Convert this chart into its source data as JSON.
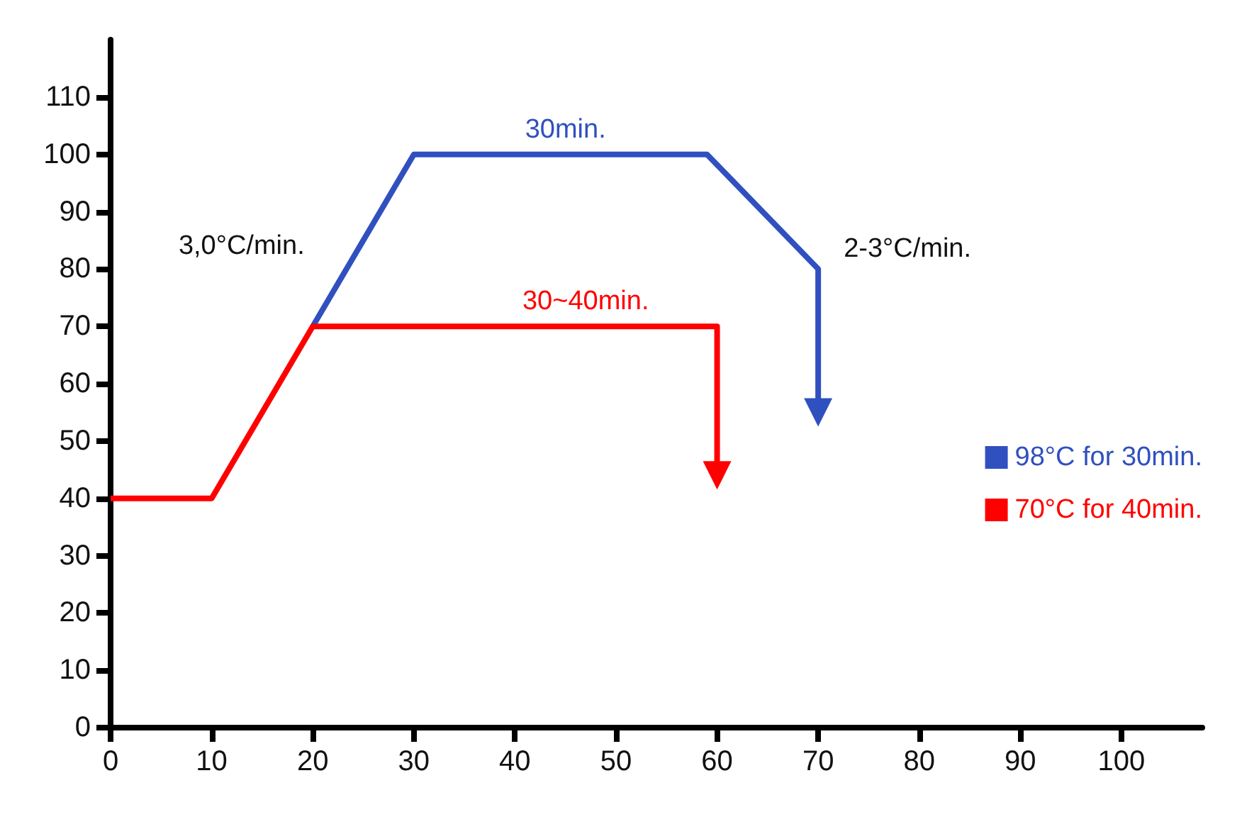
{
  "chart_data": {
    "type": "line",
    "series": [
      {
        "name": "98°C for 30min.",
        "color": "#3050c0",
        "x": [
          20,
          30,
          59,
          70,
          70
        ],
        "values": [
          70,
          100,
          100,
          80,
          55
        ]
      },
      {
        "name": "70°C for 40min.",
        "color": "#ff0000",
        "x": [
          0,
          10,
          20,
          60,
          60
        ],
        "values": [
          40,
          40,
          70,
          70,
          44
        ]
      }
    ],
    "xlim": [
      0,
      108
    ],
    "xticks": [
      0,
      10,
      20,
      30,
      40,
      50,
      60,
      70,
      80,
      90,
      100
    ],
    "ylim": [
      0,
      120
    ],
    "yticks": [
      0,
      10,
      20,
      30,
      40,
      50,
      60,
      70,
      80,
      90,
      100,
      110
    ],
    "annotations": [
      "3,0°C/min.",
      {
        "text": "30min.",
        "x": 45,
        "y": 100
      },
      {
        "text": "2-3°C/min.",
        "x": 70,
        "y": 80
      },
      {
        "text": "30~40min.",
        "x": 47,
        "y": 70
      }
    ],
    "grid": false,
    "legend": "right",
    "marker": "none",
    "line_style": "solid"
  }
}
